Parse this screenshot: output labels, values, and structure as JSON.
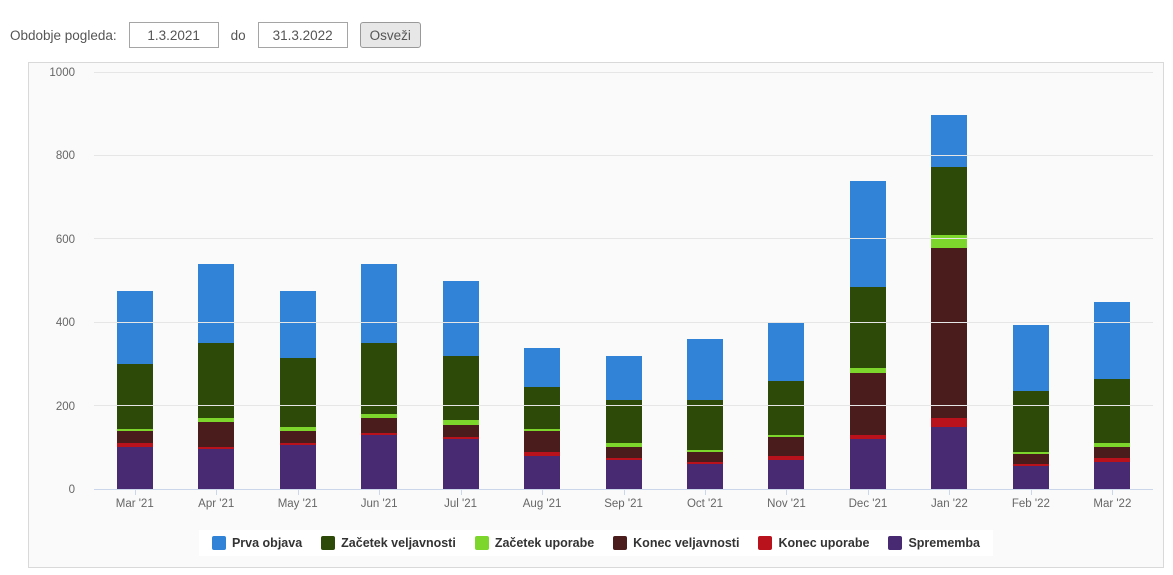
{
  "controls": {
    "label": "Obdobje pogleda:",
    "from_value": "1.3.2021",
    "separator_label": "do",
    "to_value": "31.3.2022",
    "refresh_button_label": "Osveži"
  },
  "chart_data": {
    "type": "bar",
    "stacked": true,
    "title": "",
    "xlabel": "",
    "ylabel": "",
    "categories": [
      "Mar '21",
      "Apr '21",
      "May '21",
      "Jun '21",
      "Jul '21",
      "Aug '21",
      "Sep '21",
      "Oct '21",
      "Nov '21",
      "Dec '21",
      "Jan '22",
      "Feb '22",
      "Mar '22"
    ],
    "series": [
      {
        "name": "Prva objava",
        "color": "#3183d8",
        "values": [
          175,
          190,
          160,
          190,
          180,
          95,
          105,
          145,
          140,
          255,
          125,
          160,
          185
        ]
      },
      {
        "name": "Začetek veljavnosti",
        "color": "#2d4a08",
        "values": [
          155,
          180,
          165,
          170,
          155,
          100,
          105,
          120,
          130,
          195,
          165,
          145,
          155
        ]
      },
      {
        "name": "Začetek uporabe",
        "color": "#7dd62b",
        "values": [
          5,
          10,
          10,
          10,
          10,
          5,
          10,
          5,
          5,
          10,
          30,
          5,
          10
        ]
      },
      {
        "name": "Konec veljavnosti",
        "color": "#4a1c1c",
        "values": [
          30,
          60,
          30,
          35,
          30,
          50,
          25,
          25,
          45,
          150,
          410,
          25,
          25
        ]
      },
      {
        "name": "Konec uporabe",
        "color": "#b9121d",
        "values": [
          10,
          5,
          5,
          5,
          5,
          10,
          5,
          5,
          10,
          10,
          20,
          5,
          10
        ]
      },
      {
        "name": "Sprememba",
        "color": "#482a73",
        "values": [
          100,
          95,
          105,
          130,
          120,
          80,
          70,
          60,
          70,
          120,
          150,
          55,
          65
        ]
      }
    ],
    "stack_order_note": "series are listed top-to-bottom of each stacked bar; totals per month: 475, 540, 475, 540, 500, 340, 320, 360, 400, 740, 900, 395, 450",
    "ylim": [
      0,
      1000
    ],
    "yticks": [
      0,
      200,
      400,
      600,
      800,
      1000
    ],
    "grid": true,
    "legend_position": "bottom"
  },
  "theme": {
    "plot_background": "#fafafa",
    "panel_border": "#d9d9d9",
    "gridline_color": "#e6e6e6",
    "axis_line_color": "#ccd6eb",
    "axis_label_color": "#666666",
    "legend_text_color": "#333333",
    "legend_background": "#ffffff"
  }
}
